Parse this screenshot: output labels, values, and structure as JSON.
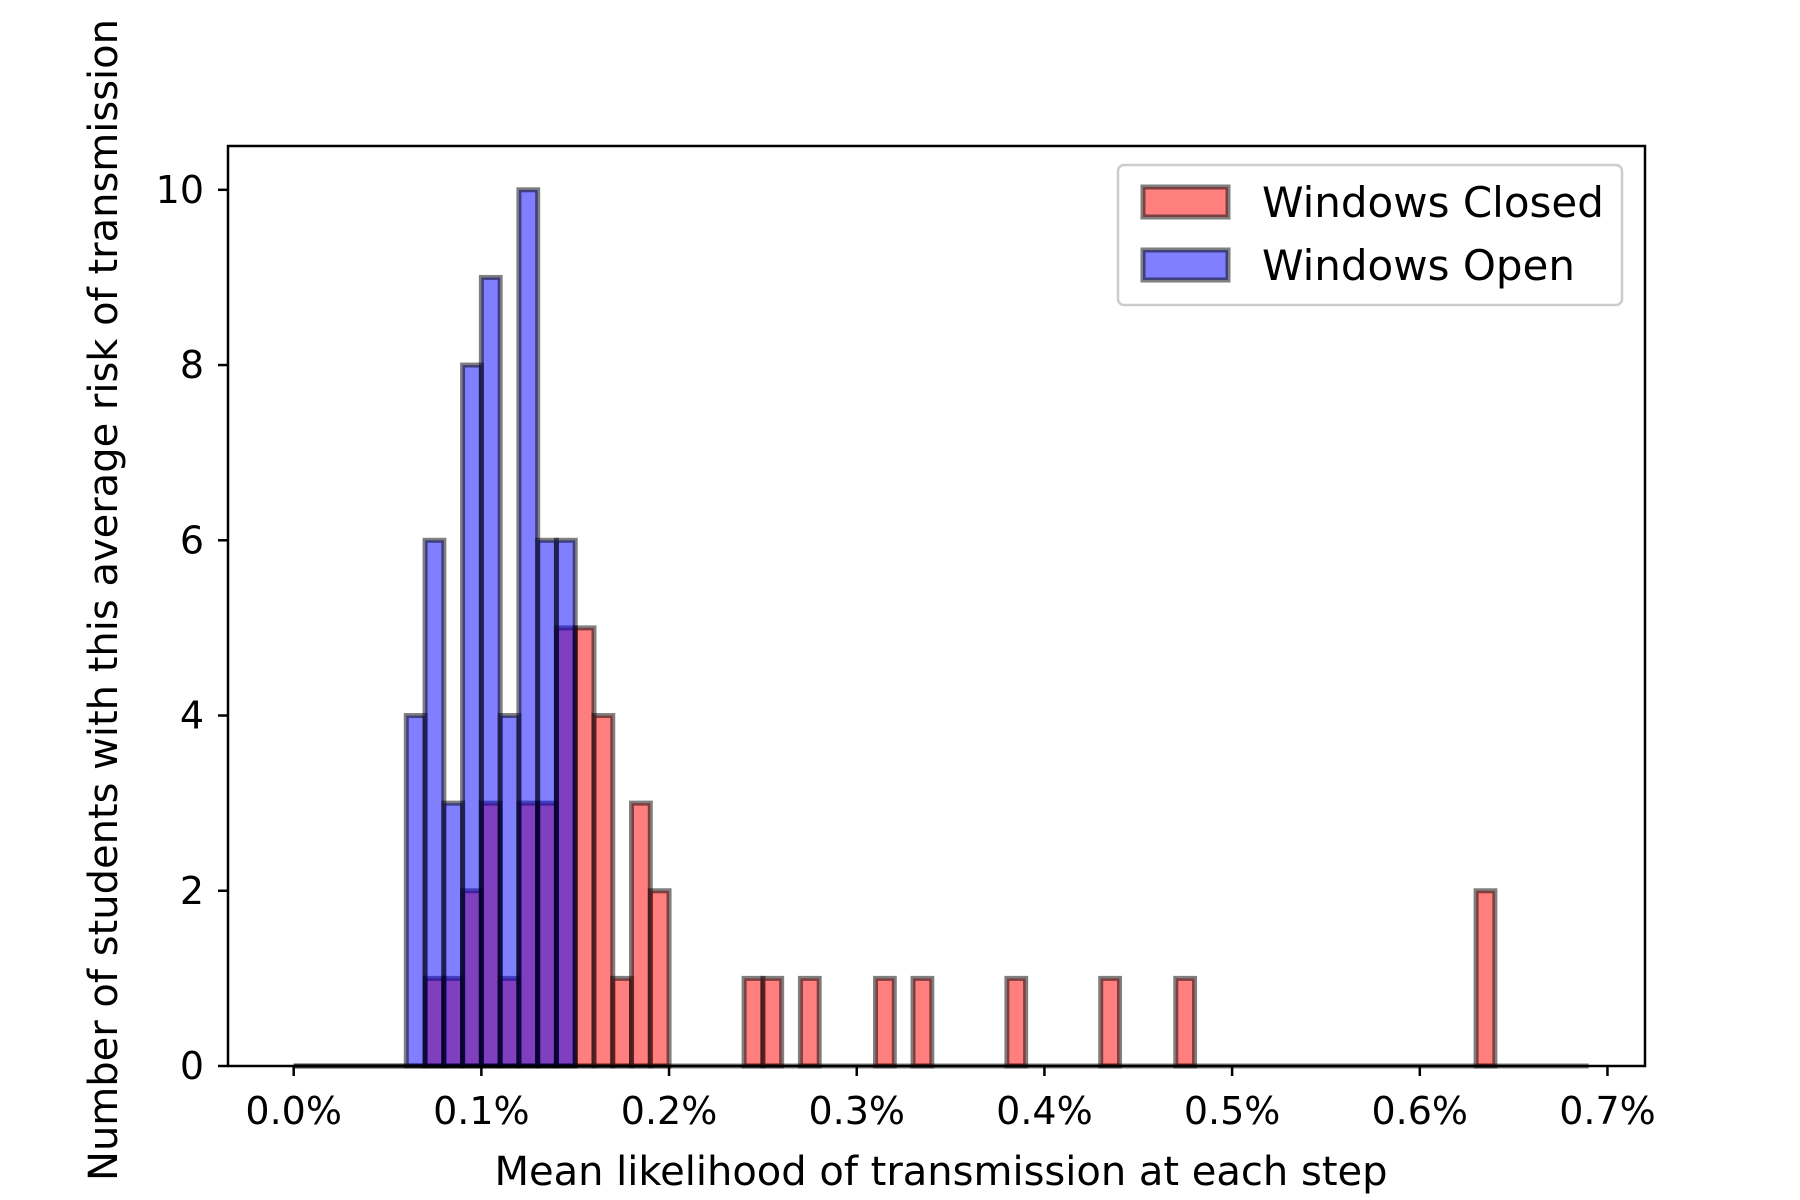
{
  "chart_data": {
    "type": "bar",
    "title": "",
    "xlabel": "Mean likelihood of transmission at each step",
    "ylabel": "Number of students with this average risk of transmission",
    "x_unit": "%",
    "bin_width": 0.01,
    "xlim": [
      -0.035,
      0.72
    ],
    "ylim": [
      0,
      10.5
    ],
    "xticks": [
      {
        "value": 0.0,
        "label": "0.0%"
      },
      {
        "value": 0.1,
        "label": "0.1%"
      },
      {
        "value": 0.2,
        "label": "0.2%"
      },
      {
        "value": 0.3,
        "label": "0.3%"
      },
      {
        "value": 0.4,
        "label": "0.4%"
      },
      {
        "value": 0.5,
        "label": "0.5%"
      },
      {
        "value": 0.6,
        "label": "0.6%"
      },
      {
        "value": 0.7,
        "label": "0.7%"
      }
    ],
    "yticks": [
      {
        "value": 0,
        "label": "0"
      },
      {
        "value": 2,
        "label": "2"
      },
      {
        "value": 4,
        "label": "4"
      },
      {
        "value": 6,
        "label": "6"
      },
      {
        "value": 8,
        "label": "8"
      },
      {
        "value": 10,
        "label": "10"
      }
    ],
    "grid": false,
    "legend_position": "top-right",
    "series": [
      {
        "name": "Windows Closed",
        "color": "#ff0000",
        "opacity": 0.5,
        "edge_color": "#000000",
        "range": [
          0.0,
          0.69
        ],
        "bins": [
          {
            "x": 0.07,
            "count": 1
          },
          {
            "x": 0.08,
            "count": 1
          },
          {
            "x": 0.09,
            "count": 2
          },
          {
            "x": 0.1,
            "count": 3
          },
          {
            "x": 0.11,
            "count": 1
          },
          {
            "x": 0.12,
            "count": 3
          },
          {
            "x": 0.13,
            "count": 3
          },
          {
            "x": 0.14,
            "count": 5
          },
          {
            "x": 0.15,
            "count": 5
          },
          {
            "x": 0.16,
            "count": 4
          },
          {
            "x": 0.17,
            "count": 1
          },
          {
            "x": 0.18,
            "count": 3
          },
          {
            "x": 0.19,
            "count": 2
          },
          {
            "x": 0.24,
            "count": 1
          },
          {
            "x": 0.25,
            "count": 1
          },
          {
            "x": 0.27,
            "count": 1
          },
          {
            "x": 0.31,
            "count": 1
          },
          {
            "x": 0.33,
            "count": 1
          },
          {
            "x": 0.38,
            "count": 1
          },
          {
            "x": 0.43,
            "count": 1
          },
          {
            "x": 0.47,
            "count": 1
          },
          {
            "x": 0.63,
            "count": 2
          }
        ]
      },
      {
        "name": "Windows Open",
        "color": "#0000ff",
        "opacity": 0.5,
        "edge_color": "#000000",
        "range": [
          0.0,
          0.15
        ],
        "bins": [
          {
            "x": 0.06,
            "count": 4
          },
          {
            "x": 0.07,
            "count": 6
          },
          {
            "x": 0.08,
            "count": 3
          },
          {
            "x": 0.09,
            "count": 8
          },
          {
            "x": 0.1,
            "count": 9
          },
          {
            "x": 0.11,
            "count": 4
          },
          {
            "x": 0.12,
            "count": 10
          },
          {
            "x": 0.13,
            "count": 6
          },
          {
            "x": 0.14,
            "count": 6
          }
        ]
      }
    ]
  }
}
